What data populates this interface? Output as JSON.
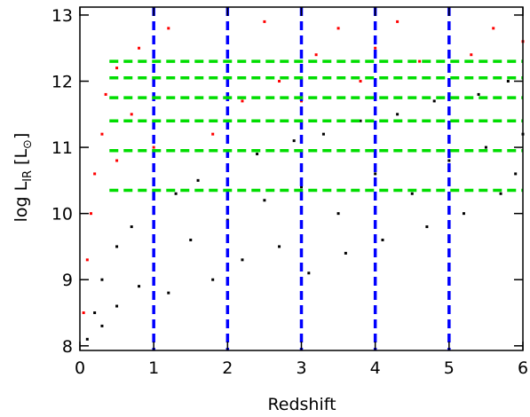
{
  "chart_data": {
    "type": "scatter",
    "x_label": "Redshift",
    "y_label_parts": [
      "log L",
      "IR",
      "[L",
      "⊙",
      "]"
    ],
    "xlim": [
      0,
      6
    ],
    "ylim": [
      7.93,
      13.12
    ],
    "xticks": [
      0,
      1,
      2,
      3,
      4,
      5,
      6
    ],
    "yticks": [
      8,
      9,
      10,
      11,
      12,
      13
    ],
    "series": [
      {
        "color": "#000000",
        "x": [
          0.1,
          0.2,
          0.3,
          0.3,
          0.5,
          0.5,
          0.7,
          0.8,
          1.0,
          1.0,
          1.2,
          1.3,
          1.5,
          1.6,
          1.8,
          2.0,
          2.0,
          2.2,
          2.4,
          2.5,
          2.7,
          2.9,
          3.0,
          3.1,
          3.3,
          3.5,
          3.6,
          3.8,
          4.0,
          4.1,
          4.3,
          4.5,
          4.7,
          4.8,
          5.0,
          5.2,
          5.4,
          5.5,
          5.7,
          5.8,
          5.9,
          6.0
        ],
        "values": [
          8.1,
          8.5,
          9.0,
          8.3,
          9.5,
          8.6,
          9.8,
          8.9,
          10.0,
          9.2,
          8.8,
          10.3,
          9.6,
          10.5,
          9.0,
          10.7,
          9.9,
          9.3,
          10.9,
          10.2,
          9.5,
          11.1,
          10.4,
          9.1,
          11.2,
          10.0,
          9.4,
          11.4,
          10.6,
          9.6,
          11.5,
          10.3,
          9.8,
          11.7,
          10.8,
          10.0,
          11.8,
          11.0,
          10.3,
          12.0,
          10.6,
          11.2
        ]
      },
      {
        "color": "#ff0000",
        "x": [
          0.05,
          0.1,
          0.15,
          0.2,
          0.3,
          0.35,
          0.5,
          0.5,
          0.7,
          0.8,
          1.0,
          1.0,
          1.2,
          1.4,
          1.6,
          1.8,
          2.0,
          2.2,
          2.5,
          2.7,
          3.0,
          3.2,
          3.5,
          3.8,
          4.0,
          4.3,
          4.6,
          5.0,
          5.3,
          5.6,
          6.0
        ],
        "values": [
          8.5,
          9.3,
          10.0,
          10.6,
          11.2,
          11.8,
          12.2,
          10.8,
          11.5,
          12.5,
          11.0,
          12.0,
          12.8,
          11.4,
          12.3,
          11.2,
          12.6,
          11.7,
          12.9,
          12.0,
          11.7,
          12.4,
          12.8,
          12.0,
          12.5,
          12.9,
          12.3,
          12.6,
          12.4,
          12.8,
          12.6
        ]
      }
    ],
    "vlines": {
      "color": "#0000ff",
      "values": [
        1,
        2,
        3,
        4,
        5
      ]
    },
    "hlines": {
      "color": "#00dd00",
      "x_start": 0.4,
      "values": [
        12.3,
        12.05,
        11.75,
        11.4,
        10.95,
        10.35
      ]
    }
  }
}
